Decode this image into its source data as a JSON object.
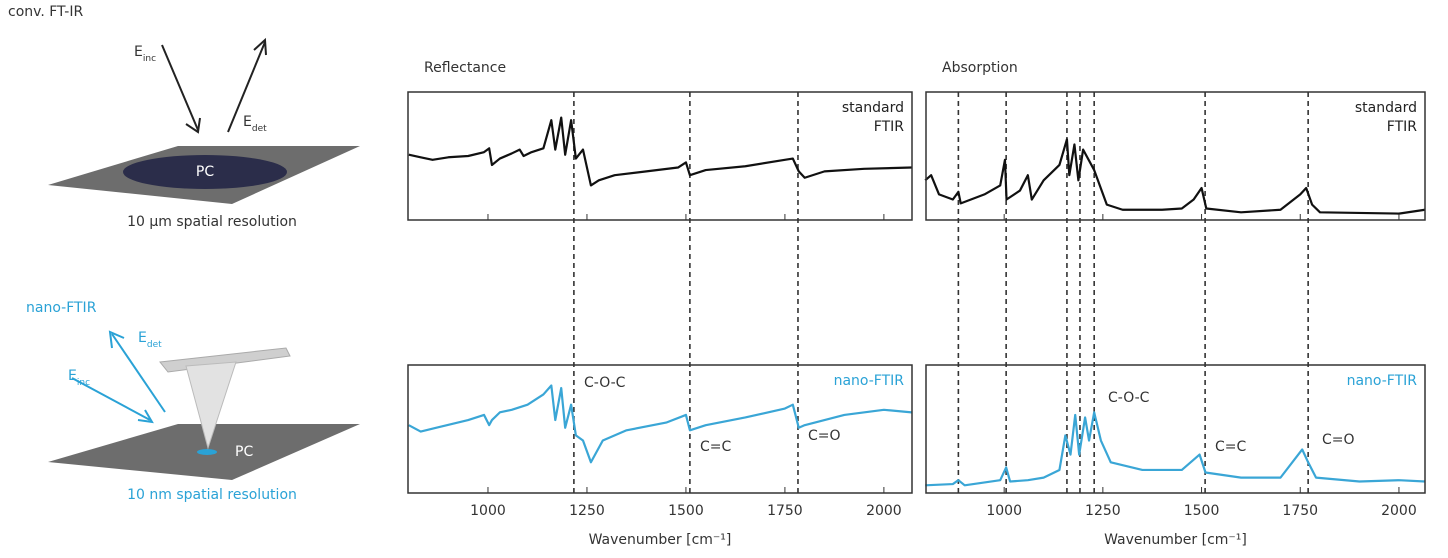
{
  "diagram": {
    "top": {
      "title": "conv. FT-IR",
      "e_inc": {
        "symbol": "E",
        "subscript": "inc"
      },
      "e_det": {
        "symbol": "E",
        "subscript": "det"
      },
      "sample": "PC",
      "caption": "10 µm spatial resolution"
    },
    "bottom": {
      "title": "nano-FTIR",
      "e_inc": {
        "symbol": "E",
        "subscript": "inc"
      },
      "e_det": {
        "symbol": "E",
        "subscript": "det"
      },
      "sample": "PC",
      "caption": "10 nm spatial resolution"
    }
  },
  "chart_data": [
    {
      "type": "line",
      "title": "Reflectance",
      "label": [
        "standard",
        "FTIR"
      ],
      "label_color": "#222",
      "xlim": [
        798,
        2071
      ],
      "ylim": [
        0,
        100
      ],
      "xticks": [
        1000,
        1250,
        1500,
        1750,
        2000
      ],
      "show_tick_labels": false,
      "marker_lines": [
        1217,
        1510,
        1783
      ],
      "series": [
        {
          "color": "#111",
          "x": [
            800,
            830,
            860,
            900,
            950,
            990,
            1003,
            1010,
            1030,
            1060,
            1080,
            1090,
            1110,
            1140,
            1160,
            1170,
            1185,
            1195,
            1210,
            1222,
            1240,
            1260,
            1280,
            1320,
            1400,
            1480,
            1500,
            1510,
            1550,
            1650,
            1750,
            1770,
            1785,
            1800,
            1850,
            1950,
            2070
          ],
          "values": [
            51,
            49,
            47,
            49,
            50,
            53,
            56,
            43,
            48,
            52,
            55,
            50,
            53,
            56,
            78,
            55,
            80,
            51,
            78,
            48,
            55,
            27,
            31,
            35,
            38,
            41,
            45,
            35,
            39,
            42,
            47,
            48,
            38,
            33,
            38,
            40,
            41
          ]
        }
      ]
    },
    {
      "type": "line",
      "label": [
        "nano-FTIR"
      ],
      "label_color": "#2aa2d6",
      "xlim": [
        798,
        2071
      ],
      "ylim": [
        0,
        100
      ],
      "xticks": [
        1000,
        1250,
        1500,
        1750,
        2000
      ],
      "show_tick_labels": true,
      "xlabel": "Wavenumber [cm⁻¹]",
      "annotations": [
        "C-O-C",
        "C=C",
        "C=O"
      ],
      "series": [
        {
          "color": "#3aa6d6",
          "x": [
            800,
            830,
            870,
            950,
            990,
            1003,
            1010,
            1030,
            1060,
            1100,
            1140,
            1160,
            1170,
            1185,
            1195,
            1210,
            1222,
            1240,
            1260,
            1290,
            1350,
            1450,
            1500,
            1510,
            1550,
            1650,
            1750,
            1770,
            1785,
            1800,
            1900,
            2000,
            2070
          ],
          "values": [
            53,
            48,
            51,
            57,
            61,
            53,
            57,
            63,
            65,
            69,
            77,
            84,
            57,
            82,
            51,
            69,
            45,
            41,
            24,
            41,
            49,
            55,
            61,
            49,
            53,
            59,
            66,
            69,
            51,
            53,
            61,
            65,
            63
          ]
        }
      ]
    },
    {
      "type": "line",
      "title": "Absorption",
      "label": [
        "standard",
        "FTIR"
      ],
      "label_color": "#222",
      "xlim": [
        802,
        2066
      ],
      "ylim": [
        0,
        100
      ],
      "xticks": [
        1000,
        1250,
        1500,
        1750,
        2000
      ],
      "show_tick_labels": false,
      "marker_lines": [
        884,
        1005,
        1159,
        1192,
        1228,
        1509,
        1770
      ],
      "series": [
        {
          "color": "#111",
          "x": [
            800,
            815,
            835,
            870,
            884,
            890,
            950,
            990,
            1002,
            1006,
            1040,
            1060,
            1070,
            1100,
            1140,
            1159,
            1165,
            1178,
            1188,
            1200,
            1228,
            1260,
            1300,
            1400,
            1450,
            1480,
            1500,
            1512,
            1600,
            1700,
            1750,
            1765,
            1780,
            1800,
            2000,
            2066
          ],
          "values": [
            31,
            35,
            20,
            16,
            22,
            13,
            20,
            27,
            47,
            16,
            23,
            35,
            16,
            31,
            43,
            63,
            35,
            59,
            31,
            55,
            39,
            12,
            8,
            8,
            9,
            16,
            25,
            9,
            6,
            8,
            20,
            25,
            12,
            6,
            5,
            8
          ]
        }
      ]
    },
    {
      "type": "line",
      "label": [
        "nano-FTIR"
      ],
      "label_color": "#2aa2d6",
      "xlim": [
        802,
        2066
      ],
      "ylim": [
        0,
        100
      ],
      "xticks": [
        1000,
        1250,
        1500,
        1750,
        2000
      ],
      "show_tick_labels": true,
      "xlabel": "Wavenumber [cm⁻¹]",
      "annotations": [
        "C-O-C",
        "C=C",
        "C=O"
      ],
      "series": [
        {
          "color": "#3aa6d6",
          "x": [
            800,
            870,
            884,
            900,
            990,
            1005,
            1015,
            1060,
            1100,
            1140,
            1155,
            1168,
            1180,
            1190,
            1205,
            1215,
            1228,
            1245,
            1270,
            1350,
            1450,
            1495,
            1510,
            1600,
            1700,
            1755,
            1770,
            1790,
            1900,
            2000,
            2066
          ],
          "values": [
            6,
            7,
            10,
            6,
            10,
            20,
            9,
            10,
            12,
            18,
            45,
            30,
            61,
            30,
            59,
            41,
            63,
            41,
            24,
            18,
            18,
            30,
            16,
            12,
            12,
            34,
            24,
            12,
            9,
            10,
            9
          ]
        }
      ]
    }
  ]
}
